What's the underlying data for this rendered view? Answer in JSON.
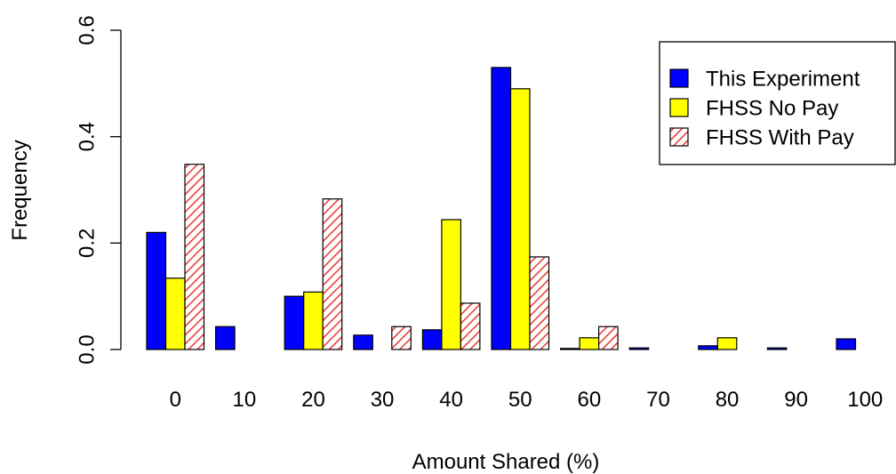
{
  "chart_data": {
    "type": "bar",
    "xlabel": "Amount Shared (%)",
    "ylabel": "Frequency",
    "ylim": [
      0,
      0.6
    ],
    "yticks": [
      "0.0",
      "0.2",
      "0.4",
      "0.6"
    ],
    "categories": [
      "0",
      "10",
      "20",
      "30",
      "40",
      "50",
      "60",
      "70",
      "80",
      "90",
      "100"
    ],
    "series": [
      {
        "name": "This Experiment",
        "color": "#0000FF",
        "pattern": "solid",
        "values": [
          0.22,
          0.043,
          0.1,
          0.027,
          0.037,
          0.53,
          0.002,
          0.003,
          0.007,
          0.003,
          0.02
        ]
      },
      {
        "name": "FHSS No Pay",
        "color": "#FFFF00",
        "pattern": "solid",
        "values": [
          0.134,
          0.0,
          0.108,
          0.0,
          0.244,
          0.49,
          0.022,
          0.0,
          0.022,
          0.0,
          0.0
        ]
      },
      {
        "name": "FHSS With Pay",
        "color": "#E8413C",
        "pattern": "hatched",
        "values": [
          0.348,
          0.0,
          0.283,
          0.043,
          0.087,
          0.174,
          0.043,
          0.0,
          0.0,
          0.0,
          0.0
        ]
      }
    ],
    "legend_position": "top-right",
    "grid": false
  }
}
